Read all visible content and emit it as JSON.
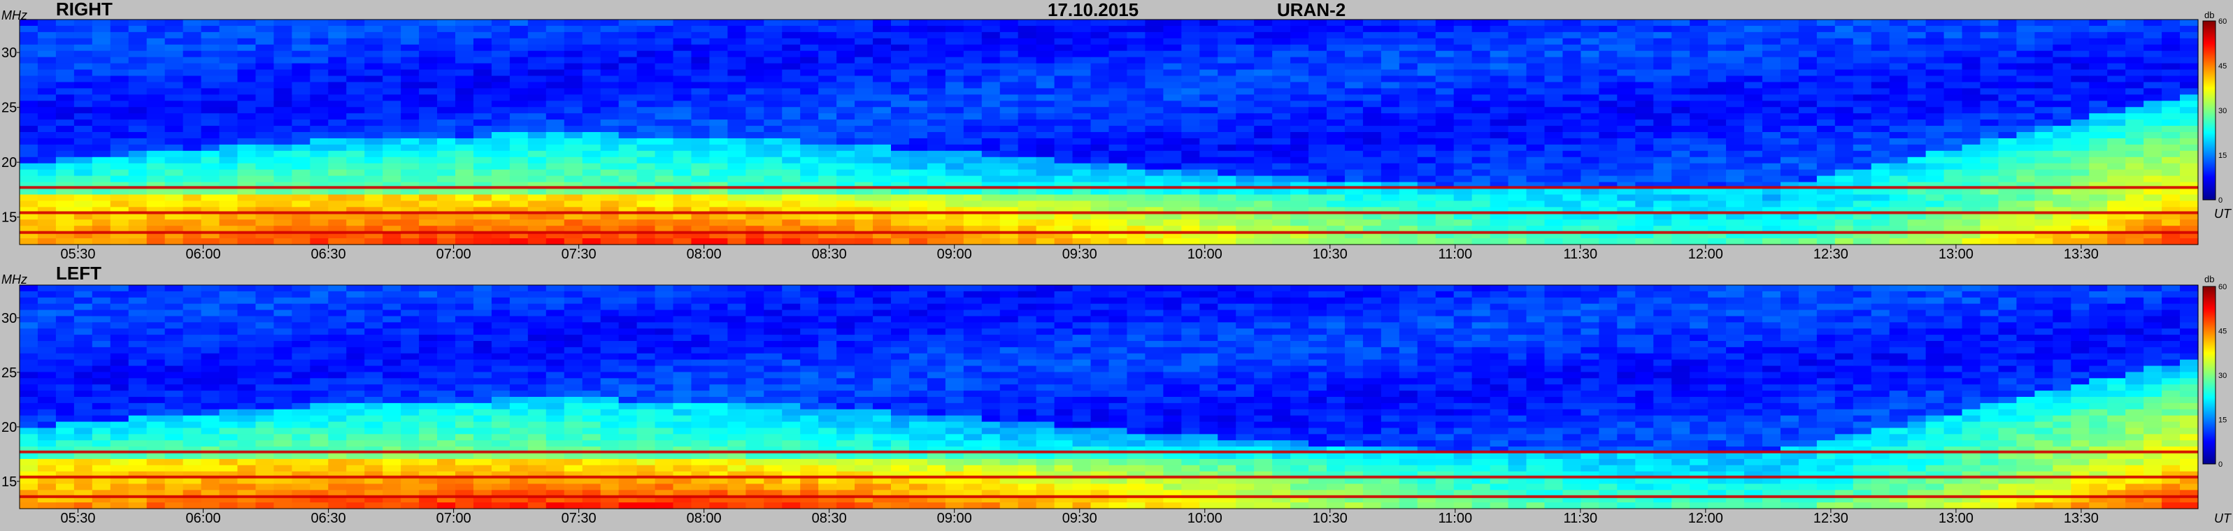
{
  "header": {
    "date": "17.10.2015",
    "instrument": "URAN-2"
  },
  "chart_data": [
    {
      "type": "heatmap",
      "title": "RIGHT",
      "ylabel": "MHz",
      "xlabel": "UT",
      "x_ticks": [
        "05:30",
        "06:00",
        "06:30",
        "07:00",
        "07:30",
        "08:00",
        "08:30",
        "09:00",
        "09:30",
        "10:00",
        "10:30",
        "11:00",
        "11:30",
        "12:00",
        "12:30",
        "13:00",
        "13:30"
      ],
      "x_range": [
        "05:16",
        "13:58"
      ],
      "y_ticks": [
        15,
        20,
        25,
        30
      ],
      "ylim": [
        12.5,
        33
      ],
      "colorbar": {
        "label": "db",
        "ticks": [
          0,
          15,
          30,
          45,
          60
        ],
        "range": [
          0,
          60
        ]
      },
      "interference_bands_mhz": [
        17.7,
        15.4,
        13.6
      ],
      "noise_floor_db": 10,
      "peak_db": 60
    },
    {
      "type": "heatmap",
      "title": "LEFT",
      "ylabel": "MHz",
      "xlabel": "UT",
      "x_ticks": [
        "05:30",
        "06:00",
        "06:30",
        "07:00",
        "07:30",
        "08:00",
        "08:30",
        "09:00",
        "09:30",
        "10:00",
        "10:30",
        "11:00",
        "11:30",
        "12:00",
        "12:30",
        "13:00",
        "13:30"
      ],
      "x_range": [
        "05:16",
        "13:58"
      ],
      "y_ticks": [
        15,
        20,
        25,
        30
      ],
      "ylim": [
        12.5,
        33
      ],
      "colorbar": {
        "label": "db",
        "ticks": [
          0,
          15,
          30,
          45,
          60
        ],
        "range": [
          0,
          60
        ]
      },
      "interference_bands_mhz": [
        17.7,
        15.4,
        13.6
      ],
      "noise_floor_db": 10,
      "peak_db": 60
    }
  ]
}
